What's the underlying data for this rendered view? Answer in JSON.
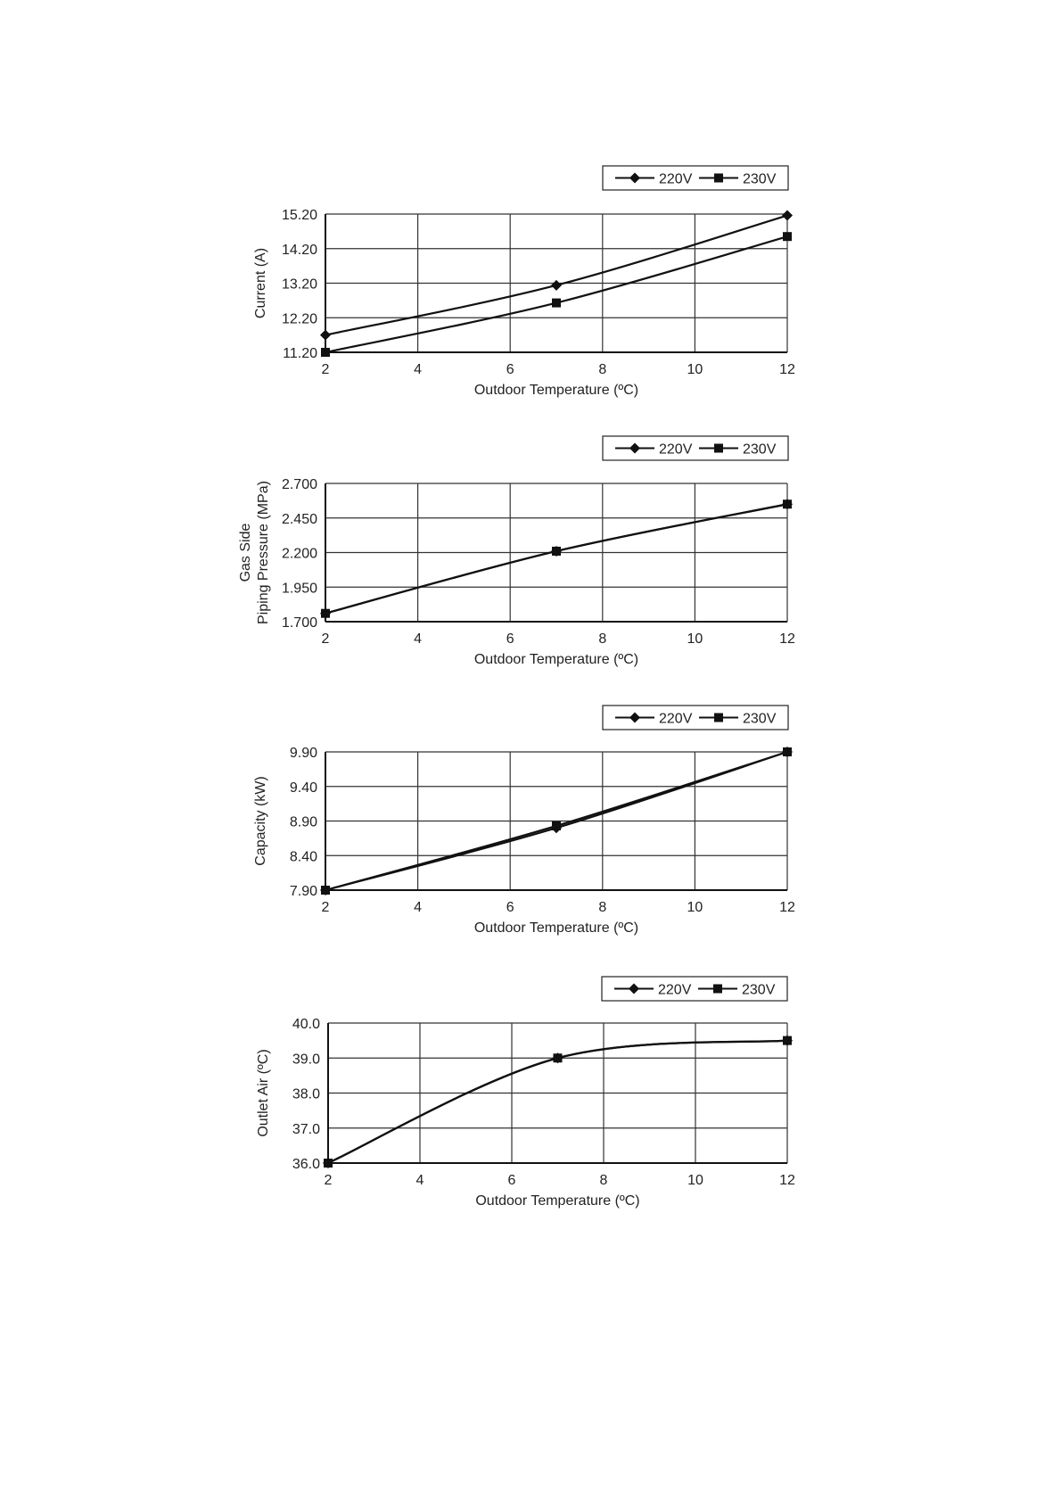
{
  "chart_data": [
    {
      "type": "line",
      "xlabel": "Outdoor Temperature (ºC)",
      "ylabel": [
        "Current (A)"
      ],
      "xlim": [
        2,
        12
      ],
      "ylim": [
        11.2,
        15.2
      ],
      "xticks": [
        "2",
        "4",
        "6",
        "8",
        "10",
        "12"
      ],
      "yticks": [
        "11.20",
        "12.20",
        "13.20",
        "14.20",
        "15.20"
      ],
      "grid": true,
      "legend_position": "top-right",
      "series": [
        {
          "name": "220V",
          "marker": "diamond",
          "x": [
            2,
            7,
            12
          ],
          "y": [
            11.7,
            13.14,
            15.16
          ]
        },
        {
          "name": "230V",
          "marker": "square",
          "x": [
            2,
            7,
            12
          ],
          "y": [
            11.2,
            12.63,
            14.55
          ]
        }
      ]
    },
    {
      "type": "line",
      "xlabel": "Outdoor Temperature (ºC)",
      "ylabel": [
        "Gas Side",
        "Piping Pressure (MPa)"
      ],
      "xlim": [
        2,
        12
      ],
      "ylim": [
        1.7,
        2.7
      ],
      "xticks": [
        "2",
        "4",
        "6",
        "8",
        "10",
        "12"
      ],
      "yticks": [
        "1.700",
        "1.950",
        "2.200",
        "2.450",
        "2.700"
      ],
      "grid": true,
      "legend_position": "top-right",
      "series": [
        {
          "name": "220V",
          "marker": "diamond",
          "x": [
            2,
            7,
            12
          ],
          "y": [
            1.76,
            2.21,
            2.55
          ]
        },
        {
          "name": "230V",
          "marker": "square",
          "x": [
            2,
            7,
            12
          ],
          "y": [
            1.76,
            2.21,
            2.55
          ]
        }
      ]
    },
    {
      "type": "line",
      "xlabel": "Outdoor Temperature (ºC)",
      "ylabel": [
        "Capacity (kW)"
      ],
      "xlim": [
        2,
        12
      ],
      "ylim": [
        7.9,
        9.9
      ],
      "xticks": [
        "2",
        "4",
        "6",
        "8",
        "10",
        "12"
      ],
      "yticks": [
        "7.90",
        "8.40",
        "8.90",
        "9.40",
        "9.90"
      ],
      "grid": true,
      "legend_position": "top-right",
      "series": [
        {
          "name": "220V",
          "marker": "diamond",
          "x": [
            2,
            7,
            12
          ],
          "y": [
            7.9,
            8.8,
            9.9
          ]
        },
        {
          "name": "230V",
          "marker": "square",
          "x": [
            2,
            7,
            12
          ],
          "y": [
            7.9,
            8.83,
            9.9
          ]
        }
      ]
    },
    {
      "type": "line",
      "xlabel": "Outdoor Temperature (ºC)",
      "ylabel": [
        "Outlet Air (ºC)"
      ],
      "xlim": [
        2,
        12
      ],
      "ylim": [
        36.0,
        40.0
      ],
      "xticks": [
        "2",
        "4",
        "6",
        "8",
        "10",
        "12"
      ],
      "yticks": [
        "36.0",
        "37.0",
        "38.0",
        "39.0",
        "40.0"
      ],
      "grid": true,
      "legend_position": "top-right",
      "series": [
        {
          "name": "220V",
          "marker": "diamond",
          "x": [
            2,
            7,
            12
          ],
          "y": [
            36.0,
            39.0,
            39.5
          ]
        },
        {
          "name": "230V",
          "marker": "square",
          "x": [
            2,
            7,
            12
          ],
          "y": [
            36.0,
            39.0,
            39.5
          ]
        }
      ]
    }
  ]
}
